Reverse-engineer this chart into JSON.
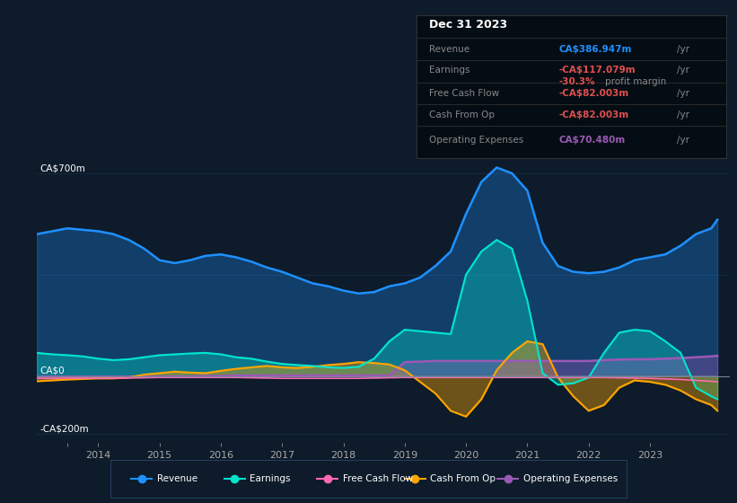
{
  "bg_color": "#0d1b2a",
  "plot_bg_color": "#0d1b2a",
  "grid_color": "#1a2e45",
  "ylabel_700": "CA$700m",
  "ylabel_0": "CA$0",
  "ylabel_neg200": "-CA$200m",
  "ylim": [
    -230,
    760
  ],
  "xlim_start": 2013.0,
  "xlim_end": 2024.3,
  "xtick_vals": [
    2013.5,
    2014,
    2015,
    2016,
    2017,
    2018,
    2019,
    2020,
    2021,
    2022,
    2023
  ],
  "xtick_labels": [
    "",
    "2014",
    "2015",
    "2016",
    "2017",
    "2018",
    "2019",
    "2020",
    "2021",
    "2022",
    "2023"
  ],
  "revenue_color": "#1e90ff",
  "earnings_color": "#00e5cc",
  "fcf_color": "#ff69b4",
  "cashfromop_color": "#ffa500",
  "opex_color": "#9b59b6",
  "legend_entries": [
    "Revenue",
    "Earnings",
    "Free Cash Flow",
    "Cash From Op",
    "Operating Expenses"
  ],
  "tooltip_title": "Dec 31 2023",
  "revenue_value": "CA$386.947m",
  "earnings_value": "-CA$117.079m",
  "margin_value": "-30.3%",
  "fcf_value": "-CA$82.003m",
  "cashop_value": "-CA$82.003m",
  "opex_value": "CA$70.480m"
}
